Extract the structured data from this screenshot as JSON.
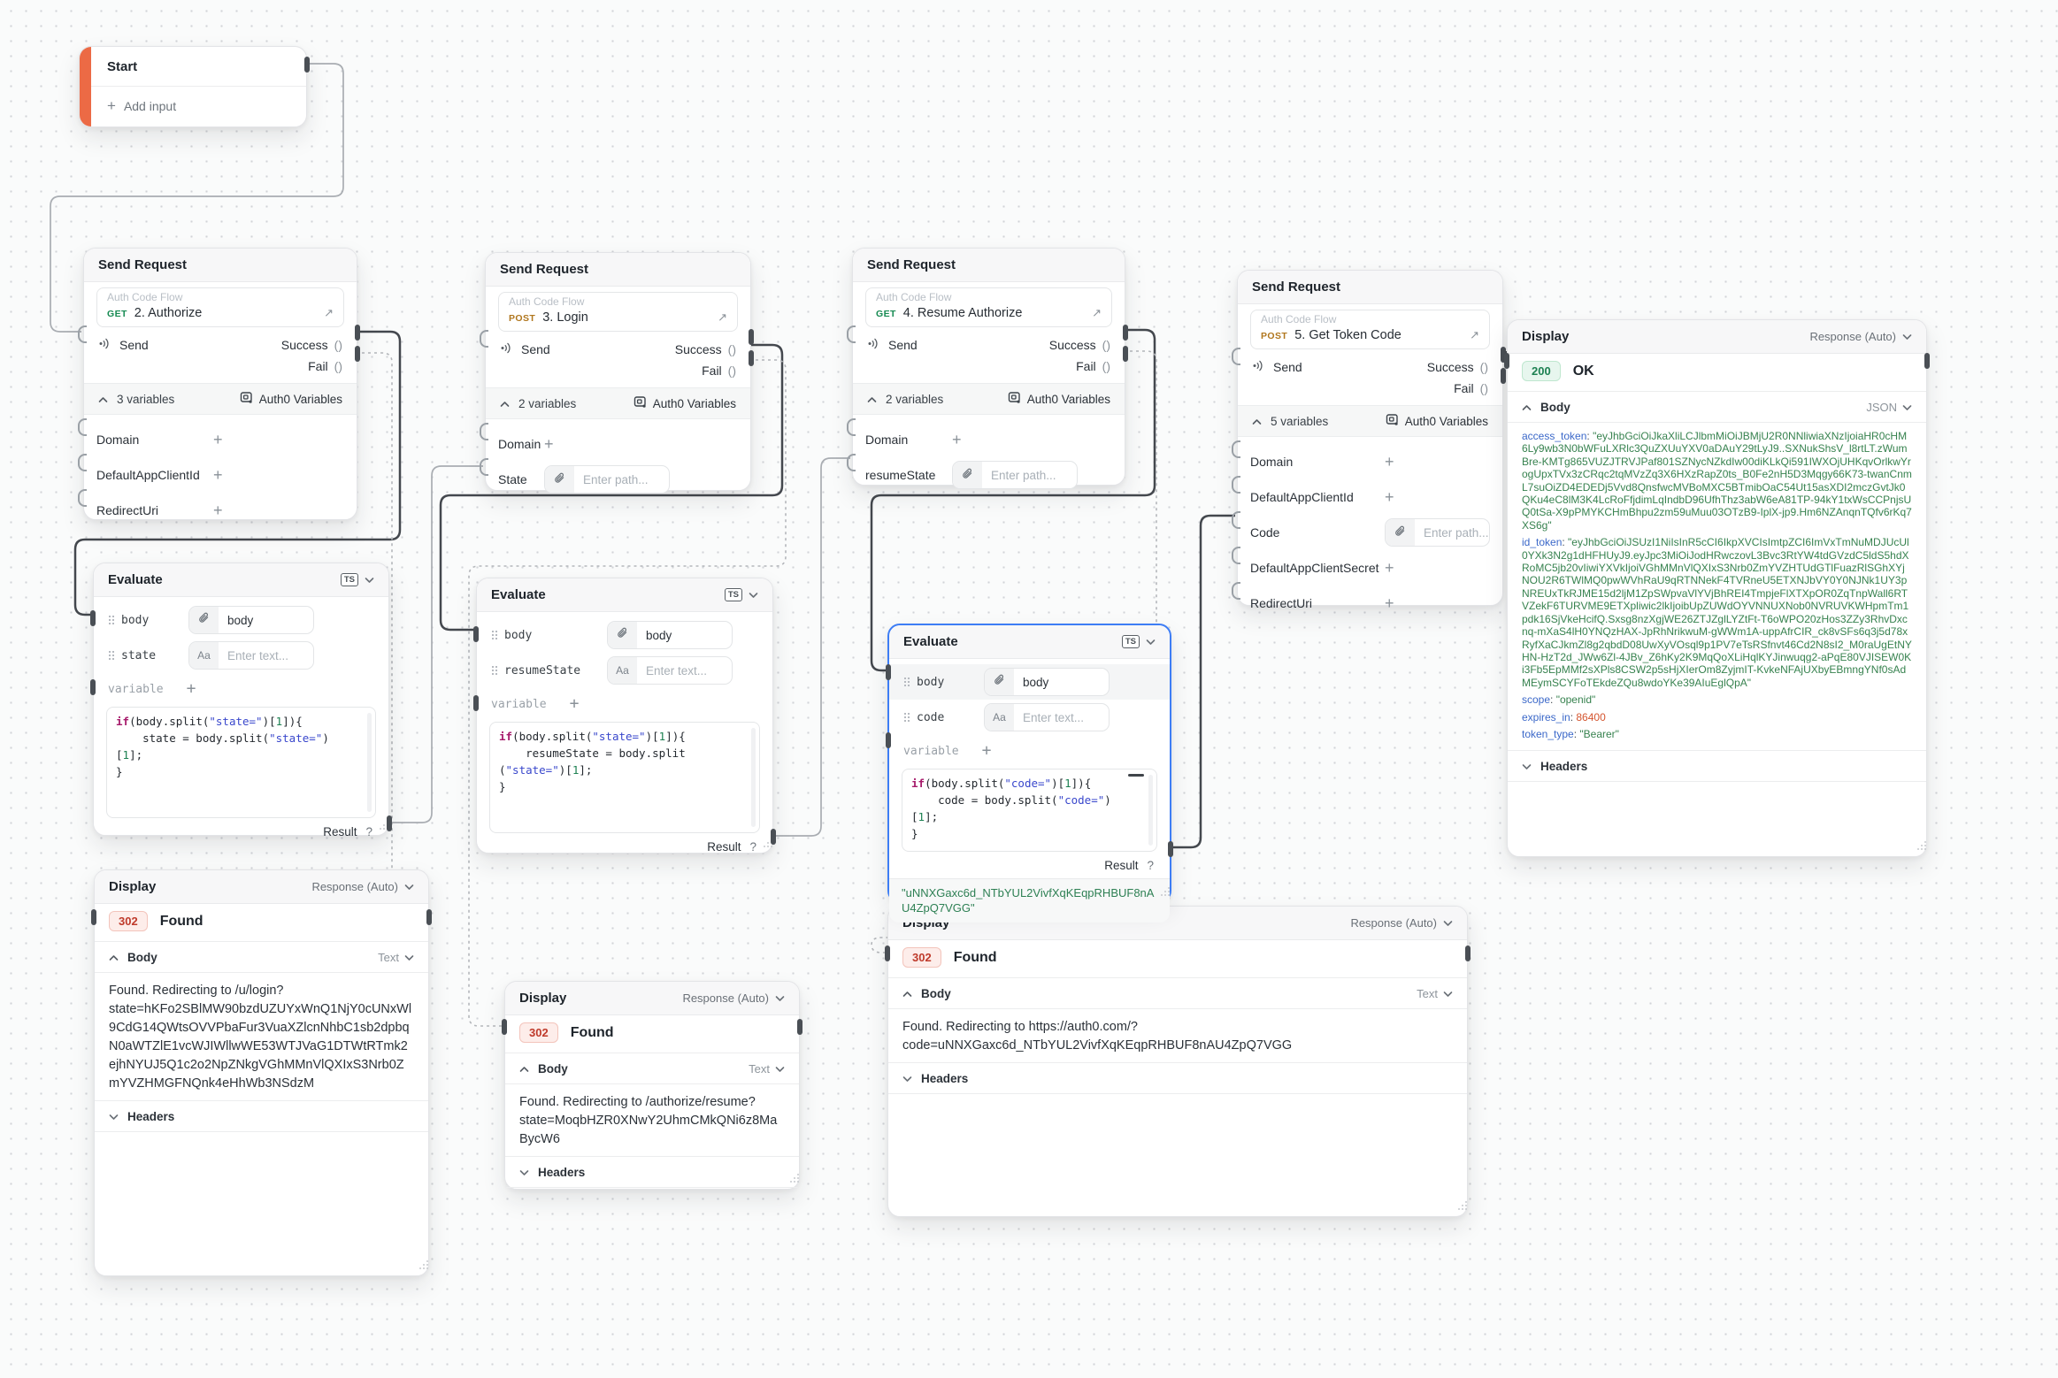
{
  "colors": {
    "accent_selected": "#3d7df5",
    "start_bar": "#ec6a45",
    "method_get": "#168a52",
    "method_post": "#b0761d",
    "badge_302_text": "#bf3a2b",
    "badge_200_text": "#1d8152",
    "code_keyword": "#a61b6b",
    "code_string": "#3947cc",
    "code_number": "#1d8152",
    "json_key": "#3b68c9",
    "json_string": "#37824f",
    "json_number": "#d4552f",
    "result_green": "#2e8054"
  },
  "common": {
    "send": "Send",
    "success": "Success",
    "fail": "Fail",
    "parens": "()",
    "variables_button": "Auth0 Variables",
    "flow_label": "Auth Code Flow",
    "variable_label": "variable",
    "plus": "+",
    "result_label": "Result",
    "help": "?",
    "ts_badge": "TS",
    "response_mode": "Response (Auto)",
    "body_label": "Body",
    "headers_label": "Headers",
    "arrow": "↗",
    "aa": "Aa"
  },
  "start": {
    "title": "Start",
    "add_input": "Add input"
  },
  "sr1": {
    "title": "Send Request",
    "method": "GET",
    "request_name": "2. Authorize",
    "variables_count": "3 variables",
    "fields": [
      {
        "label": "Domain",
        "control": "add"
      },
      {
        "label": "DefaultAppClientId",
        "control": "add"
      },
      {
        "label": "RedirectUri",
        "control": "add"
      }
    ]
  },
  "sr2": {
    "title": "Send Request",
    "method": "POST",
    "request_name": "3. Login",
    "variables_count": "2 variables",
    "fields": [
      {
        "label": "Domain",
        "control": "add"
      },
      {
        "label": "State",
        "control": "path",
        "placeholder": "Enter path..."
      }
    ]
  },
  "sr3": {
    "title": "Send Request",
    "method": "GET",
    "request_name": "4. Resume Authorize",
    "variables_count": "2 variables",
    "fields": [
      {
        "label": "Domain",
        "control": "add"
      },
      {
        "label": "resumeState",
        "control": "path",
        "placeholder": "Enter path..."
      }
    ]
  },
  "sr4": {
    "title": "Send Request",
    "method": "POST",
    "request_name": "5. Get Token Code",
    "variables_count": "5 variables",
    "fields": [
      {
        "label": "Domain",
        "control": "add"
      },
      {
        "label": "DefaultAppClientId",
        "control": "add"
      },
      {
        "label": "Code",
        "control": "path",
        "placeholder": "Enter path..."
      },
      {
        "label": "DefaultAppClientSecret",
        "control": "add"
      },
      {
        "label": "RedirectUri",
        "control": "add"
      }
    ]
  },
  "eval1": {
    "title": "Evaluate",
    "args": [
      {
        "label": "body",
        "control": "link",
        "value": "body"
      },
      {
        "label": "state",
        "control": "text",
        "placeholder": "Enter text..."
      }
    ],
    "code": [
      [
        [
          "k",
          "if"
        ],
        [
          "p",
          "(body.split("
        ],
        [
          "s",
          "\"state=\""
        ],
        [
          "p",
          ")["
        ],
        [
          "n",
          "1"
        ],
        [
          "p",
          "]){"
        ]
      ],
      [
        [
          "p",
          "    state = body.split("
        ],
        [
          "s",
          "\"state=\""
        ],
        [
          "p",
          ")"
        ]
      ],
      [
        [
          "p",
          "["
        ],
        [
          "n",
          "1"
        ],
        [
          "p",
          "];"
        ]
      ],
      [
        [
          "p",
          "}"
        ]
      ]
    ]
  },
  "eval2": {
    "title": "Evaluate",
    "args": [
      {
        "label": "body",
        "control": "link",
        "value": "body"
      },
      {
        "label": "resumeState",
        "control": "text",
        "placeholder": "Enter text..."
      }
    ],
    "code": [
      [
        [
          "k",
          "if"
        ],
        [
          "p",
          "(body.split("
        ],
        [
          "s",
          "\"state=\""
        ],
        [
          "p",
          ")["
        ],
        [
          "n",
          "1"
        ],
        [
          "p",
          "]){"
        ]
      ],
      [
        [
          "p",
          "    resumeState = body.split"
        ]
      ],
      [
        [
          "p",
          "("
        ],
        [
          "s",
          "\"state=\""
        ],
        [
          "p",
          ")["
        ],
        [
          "n",
          "1"
        ],
        [
          "p",
          "];"
        ]
      ],
      [
        [
          "p",
          "}"
        ]
      ]
    ]
  },
  "eval3": {
    "title": "Evaluate",
    "args": [
      {
        "label": "body",
        "control": "link",
        "value": "body"
      },
      {
        "label": "code",
        "control": "text",
        "placeholder": "Enter text..."
      }
    ],
    "code": [
      [
        [
          "k",
          "if"
        ],
        [
          "p",
          "(body.split("
        ],
        [
          "s",
          "\"code=\""
        ],
        [
          "p",
          ")["
        ],
        [
          "n",
          "1"
        ],
        [
          "p",
          "]){"
        ]
      ],
      [
        [
          "p",
          "    code = body.split("
        ],
        [
          "s",
          "\"code=\""
        ],
        [
          "p",
          ")"
        ]
      ],
      [
        [
          "p",
          "["
        ],
        [
          "n",
          "1"
        ],
        [
          "p",
          "];"
        ]
      ],
      [
        [
          "p",
          "}"
        ]
      ]
    ],
    "result_value": "\"uNNXGaxc6d_NTbYUL2VivfXqKEqpRHBUF8nAU4ZpQ7VGG\""
  },
  "disp1": {
    "title": "Display",
    "status_code": "302",
    "status_text": "Found",
    "format": "Text",
    "body_text": "Found. Redirecting to /u/login?\nstate=hKFo2SBlMW90bzdUZUYxWnQ1NjY0cUNxWl9CdG14QWtsOVVPbaFur3VuaXZlcnNhbC1sb2dpbqN0aWTZlE1vcWJIWllwWE53WTJVaG1DTWtRTmk2ejhNYUJ5Q1c2o2NpZNkgVGhMMnVlQXIxS3Nrb0ZmYVZHMGFNQnk4eHhWb3NSdzM"
  },
  "disp2": {
    "title": "Display",
    "status_code": "302",
    "status_text": "Found",
    "format": "Text",
    "body_text": "Found. Redirecting to /authorize/resume?\nstate=MoqbHZR0XNwY2UhmCMkQNi6z8MaBycW6"
  },
  "disp3": {
    "title": "Display",
    "status_code": "302",
    "status_text": "Found",
    "format": "Text",
    "body_text": "Found. Redirecting to https://auth0.com/?\ncode=uNNXGaxc6d_NTbYUL2VivfXqKEqpRHBUF8nAU4ZpQ7VGG"
  },
  "disp4": {
    "title": "Display",
    "status_code": "200",
    "status_text": "OK",
    "format": "JSON",
    "json": [
      {
        "key": "access_token",
        "value": "\"eyJhbGciOiJkaXliLCJlbmMiOiJBMjU2R0NNliwiaXNzIjoiaHR0cHM6Ly9wb3N0bWFuLXRlc3QuZXUuYXV0aDAuY29tLyJ9..SXNukShsV_l8rtLT.zWumBre-KMTg865VUZJTRVJPaf801SZNycNZkdIw00diKLkQi591IWXOjUHKqvOrlkwYrogUpxTVx3zCRqc2tqMVzZq3X6HXzRapZ0ts_B0Fe2nH5D3Mqgy66K73-twanCnmL7suOiZD4EDEDj5Vvd8QnsfwcMVBoMXC5BTmibOaC54Ut15asXDI2mczGvtJk0QKu4eC8lM3K4LcRoFfjdimLqIndbD96UfhThz3abW6eA81TP-94kY1txWsCCPnjsUQ0tSa-X9pPMYKCHmBhpu2zm59uMuu03OTzB9-IplX-jp9.Hm6NZAnqnTQfv6rKq7XS6g\""
      },
      {
        "key": "id_token",
        "value": "\"eyJhbGciOiJSUzI1NiIsInR5cCI6IkpXVCIsImtpZCI6ImVxTmNuMDJUcUl0YXk3N2g1dHFHUyJ9.eyJpc3MiOiJodHRwczovL3Bvc3RtYW4tdGVzdC5ldS5hdXRoMC5jb20vIiwiYXVkIjoiVGhMMnVlQXIxS3Nrb0ZmYVZHTUdGTlFuazRlSGhXYjNOU2R6TWlMQ0pwWVhRaU9qRTNNekF4TVRneU5ETXNJbVY0Y0NJNk1UY3pNREUxTkRJME15d2ljM1ZpSWpvaVlYVjBhREI4TmpjeFlXTXpOR0ZqTnpWall6RTVZekF6TURVME9ETXpliwic2lkIjoibUpZUWdOYVNNUXNob0NVRUVKWHpmTm1pdk16SjVkeHcifQ.Sxsg8nzXgjWE26ZTJZglLYZtFt-T6oWPO20zHos3ZZy3RhvDxcnq-mXaS4lH0YNQzHAX-JpRhNrikwuM-gWWm1A-uppAfrCIR_ck8vSFs6q3j5d78xRyfXaCJkmZl8g2qbdD08UwXyVOsql9p1PV7eTsRSfnvt46Cd2N8sI2_M0raUgEtNYHN-HzT2d_JWw6Zl-4JBv_Z6hKy2K9MqQoXLiHqlKYJinwuqg2-aPqE80VJISEW0Ki3Fb5EpMMf2sXPls8CSW2p5sHjXIerOm8ZyjmIT-KvkeNFAjUXbyEBmngYNf0sAdMEymSCYFoTEkdeZQu8wdoYKe39AIuEglQpA\""
      },
      {
        "key": "scope",
        "value": "\"openid\""
      },
      {
        "key": "expires_in",
        "value": "86400",
        "num": true
      },
      {
        "key": "token_type",
        "value": "\"Bearer\""
      }
    ]
  }
}
